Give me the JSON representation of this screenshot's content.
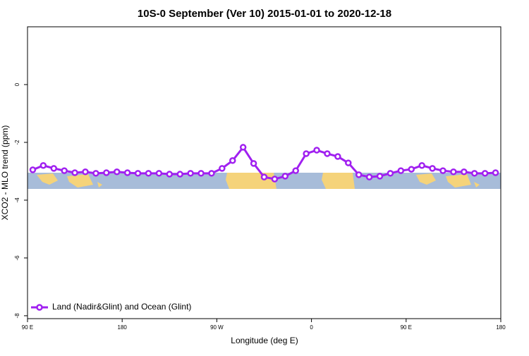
{
  "chart_data": {
    "type": "line",
    "title": "10S-0 September (Ver 10)   2015-01-01 to 2020-12-18",
    "x_label": "Longitude (deg E)",
    "y_label": "XCO2 - MLO trend (ppm)",
    "x": [
      95,
      105,
      115,
      125,
      135,
      145,
      155,
      165,
      175,
      185,
      195,
      205,
      215,
      225,
      235,
      245,
      255,
      265,
      275,
      285,
      295,
      305,
      315,
      325,
      335,
      345,
      355,
      365,
      375,
      385,
      395,
      405,
      415,
      425,
      435,
      445,
      455,
      465,
      475,
      485,
      495,
      505,
      515,
      525,
      535
    ],
    "series": [
      {
        "name": "Land (Nadir&Glint) and Ocean (Glint)",
        "color": "#a020f0",
        "values": [
          -2.95,
          -2.8,
          -2.9,
          -2.98,
          -3.05,
          -3.02,
          -3.07,
          -3.05,
          -3.02,
          -3.05,
          -3.07,
          -3.07,
          -3.07,
          -3.1,
          -3.1,
          -3.07,
          -3.07,
          -3.07,
          -2.9,
          -2.63,
          -2.17,
          -2.73,
          -3.2,
          -3.27,
          -3.17,
          -2.98,
          -2.39,
          -2.27,
          -2.39,
          -2.49,
          -2.71,
          -3.12,
          -3.2,
          -3.17,
          -3.07,
          -2.98,
          -2.93,
          -2.8,
          -2.9,
          -2.98,
          -3.02,
          -3.02,
          -3.07,
          -3.07,
          -3.05
        ]
      }
    ],
    "xlim": [
      90,
      540
    ],
    "xticks": [
      {
        "value": 90,
        "label": "90 E"
      },
      {
        "value": 180,
        "label": "180"
      },
      {
        "value": 270,
        "label": "90 W"
      },
      {
        "value": 360,
        "label": "0"
      },
      {
        "value": 450,
        "label": "90 E"
      },
      {
        "value": 540,
        "label": "180"
      }
    ],
    "ylim": [
      -8.1,
      2
    ],
    "yticks": [
      0,
      -2,
      -4,
      -6,
      -8
    ],
    "legend": "bottom-left"
  }
}
